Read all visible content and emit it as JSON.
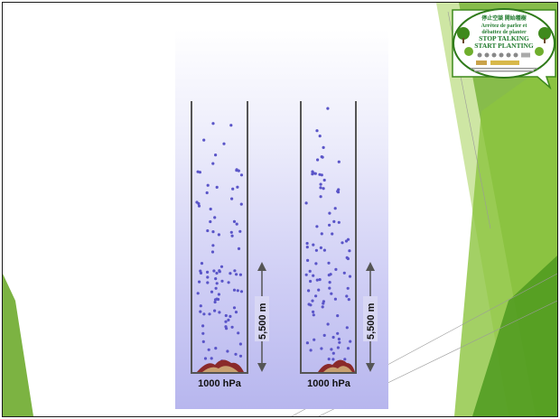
{
  "diagram": {
    "columns": [
      {
        "pressure_label": "1000 hPa",
        "height_label": "5,500 m"
      },
      {
        "pressure_label": "1000 hPa",
        "height_label": "5,500 m"
      }
    ]
  },
  "logo": {
    "line1": "停止空談 開始種樹",
    "line2": "Arrêtez de parler et",
    "line3": "débattez de planter",
    "line4": "STOP TALKING",
    "line5": "START PLANTING"
  },
  "colors": {
    "accent_green": "#7cb342",
    "dark_green": "#3f8a1c",
    "dot_blue": "#5a55c8",
    "tube_gray": "#555555"
  }
}
